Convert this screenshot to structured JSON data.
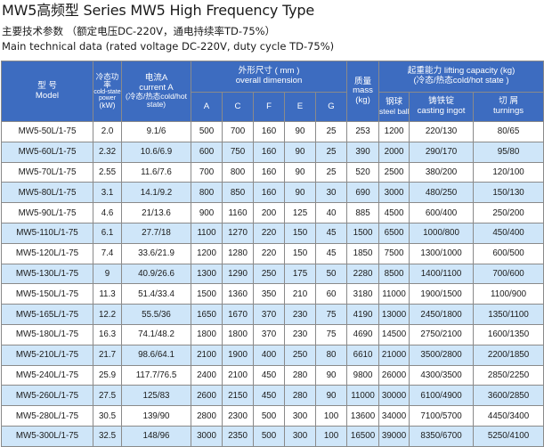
{
  "title": "MW5高频型   Series MW5 High Frequency Type",
  "subtitle_cn": "主要技术参数 （额定电压DC-220V，通电持续率TD-75%）",
  "subtitle_en": "Main technical data (rated voltage DC-220V, duty cycle TD-75%)",
  "colors": {
    "header_bg": "#3d6cc0",
    "row_alt": "#cfe6f9",
    "row_plain": "#ffffff"
  },
  "header": {
    "model_cn": "型 号",
    "model_en": "Model",
    "power_cn": "冷态功率",
    "power_en": "cold-state power",
    "power_unit": "(kW)",
    "current_cn": "电流A",
    "current_en": "current A",
    "current_sub": "(冷态/热态cold/hot state)",
    "dims_cn": "外形尺寸 ( mm )",
    "dims_en": "overall dimension",
    "dim_cols": [
      "A",
      "C",
      "F",
      "E",
      "G"
    ],
    "mass_cn": "质量",
    "mass_en": "mass",
    "mass_unit": "(kg)",
    "lift_title": "起重能力 lifting capacity (kg)",
    "lift_sub": "(冷态/热态cold/hot state )",
    "steel_ball_cn": "钢球",
    "steel_ball_en": "steel ball",
    "ingot_cn": "铸铁锭",
    "ingot_en": "casting ingot",
    "turnings_cn": "切 屑",
    "turnings_en": "turnings"
  },
  "rows": [
    [
      "MW5-50L/1-75",
      "2.0",
      "9.1/6",
      "500",
      "700",
      "160",
      "90",
      "25",
      "253",
      "1200",
      "220/130",
      "80/65"
    ],
    [
      "MW5-60L/1-75",
      "2.32",
      "10.6/6.9",
      "600",
      "750",
      "160",
      "90",
      "25",
      "390",
      "2000",
      "290/170",
      "95/80"
    ],
    [
      "MW5-70L/1-75",
      "2.55",
      "11.6/7.6",
      "700",
      "800",
      "160",
      "90",
      "25",
      "520",
      "2500",
      "380/200",
      "120/100"
    ],
    [
      "MW5-80L/1-75",
      "3.1",
      "14.1/9.2",
      "800",
      "850",
      "160",
      "90",
      "30",
      "690",
      "3000",
      "480/250",
      "150/130"
    ],
    [
      "MW5-90L/1-75",
      "4.6",
      "21/13.6",
      "900",
      "1160",
      "200",
      "125",
      "40",
      "885",
      "4500",
      "600/400",
      "250/200"
    ],
    [
      "MW5-110L/1-75",
      "6.1",
      "27.7/18",
      "1100",
      "1270",
      "220",
      "150",
      "45",
      "1500",
      "6500",
      "1000/800",
      "450/400"
    ],
    [
      "MW5-120L/1-75",
      "7.4",
      "33.6/21.9",
      "1200",
      "1280",
      "220",
      "150",
      "45",
      "1850",
      "7500",
      "1300/1000",
      "600/500"
    ],
    [
      "MW5-130L/1-75",
      "9",
      "40.9/26.6",
      "1300",
      "1290",
      "250",
      "175",
      "50",
      "2280",
      "8500",
      "1400/1100",
      "700/600"
    ],
    [
      "MW5-150L/1-75",
      "11.3",
      "51.4/33.4",
      "1500",
      "1360",
      "350",
      "210",
      "60",
      "3180",
      "11000",
      "1900/1500",
      "1100/900"
    ],
    [
      "MW5-165L/1-75",
      "12.2",
      "55.5/36",
      "1650",
      "1670",
      "370",
      "230",
      "75",
      "4190",
      "13000",
      "2450/1800",
      "1350/1100"
    ],
    [
      "MW5-180L/1-75",
      "16.3",
      "74.1/48.2",
      "1800",
      "1800",
      "370",
      "230",
      "75",
      "4690",
      "14500",
      "2750/2100",
      "1600/1350"
    ],
    [
      "MW5-210L/1-75",
      "21.7",
      "98.6/64.1",
      "2100",
      "1900",
      "400",
      "250",
      "80",
      "6610",
      "21000",
      "3500/2800",
      "2200/1850"
    ],
    [
      "MW5-240L/1-75",
      "25.9",
      "117.7/76.5",
      "2400",
      "2100",
      "450",
      "280",
      "90",
      "9800",
      "26000",
      "4300/3500",
      "2850/2250"
    ],
    [
      "MW5-260L/1-75",
      "27.5",
      "125/83",
      "2600",
      "2150",
      "450",
      "280",
      "90",
      "11000",
      "30000",
      "6100/4900",
      "3600/2850"
    ],
    [
      "MW5-280L/1-75",
      "30.5",
      "139/90",
      "2800",
      "2300",
      "500",
      "300",
      "100",
      "13600",
      "34000",
      "7100/5700",
      "4450/3400"
    ],
    [
      "MW5-300L/1-75",
      "32.5",
      "148/96",
      "3000",
      "2350",
      "500",
      "300",
      "100",
      "16500",
      "39000",
      "8350/6700",
      "5250/4100"
    ]
  ]
}
